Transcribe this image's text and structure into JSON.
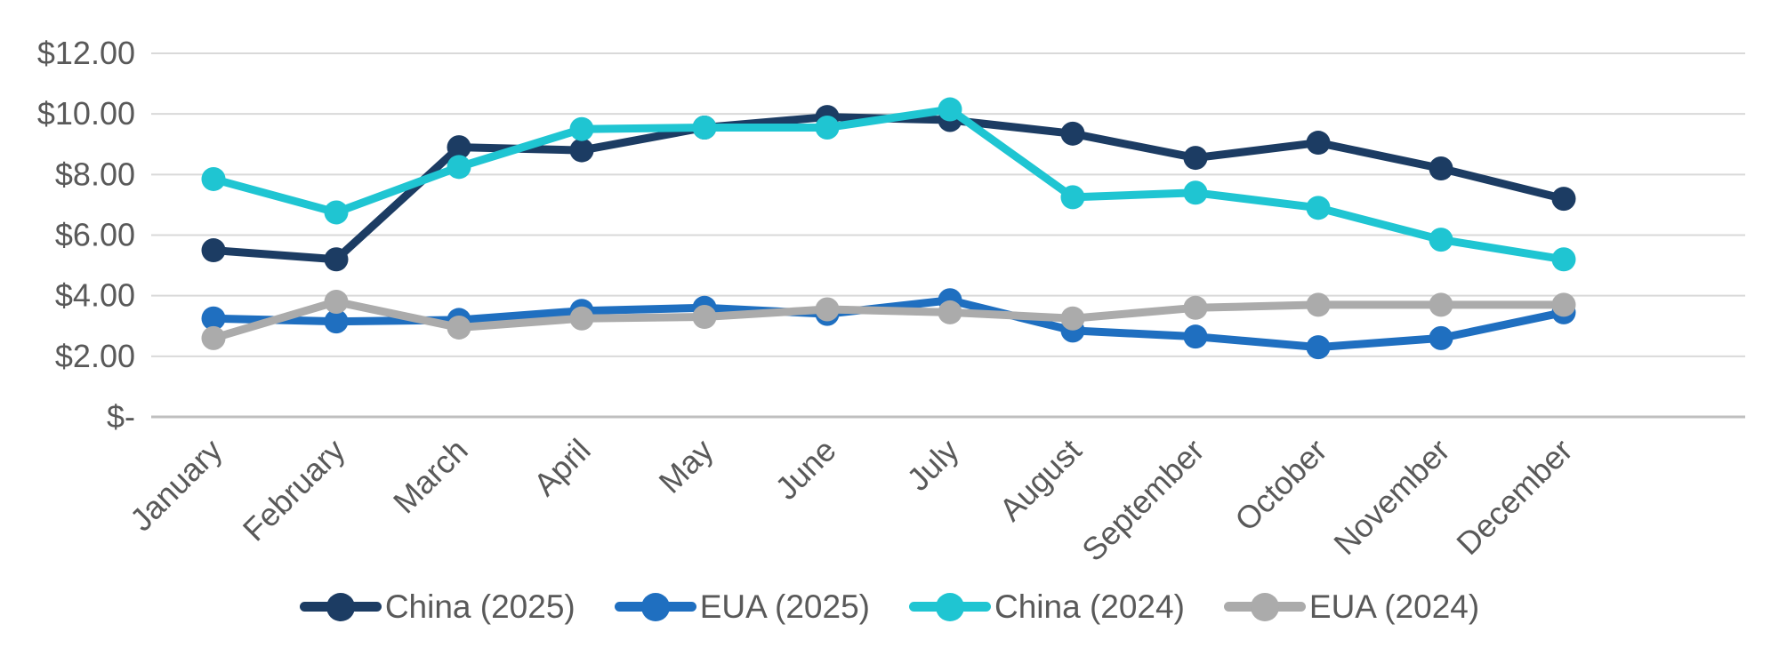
{
  "chart_data": {
    "type": "line",
    "title": "",
    "xlabel": "",
    "ylabel": "",
    "categories": [
      "January",
      "February",
      "March",
      "April",
      "May",
      "June",
      "July",
      "August",
      "September",
      "October",
      "November",
      "December"
    ],
    "series": [
      {
        "name": "China (2025)",
        "color": "#1C3C63",
        "values": [
          5.5,
          5.2,
          8.9,
          8.8,
          9.55,
          9.9,
          9.8,
          9.35,
          8.55,
          9.05,
          8.2,
          7.2
        ]
      },
      {
        "name": "EUA (2025)",
        "color": "#1F6FC0",
        "values": [
          3.25,
          3.15,
          3.2,
          3.5,
          3.6,
          3.4,
          3.85,
          2.85,
          2.65,
          2.3,
          2.6,
          3.45
        ]
      },
      {
        "name": "China (2024)",
        "color": "#1FC5D2",
        "values": [
          7.85,
          6.75,
          8.25,
          9.5,
          9.55,
          9.55,
          10.15,
          7.25,
          7.4,
          6.9,
          5.85,
          5.2
        ]
      },
      {
        "name": "EUA (2024)",
        "color": "#ABABAB",
        "values": [
          2.6,
          3.8,
          2.95,
          3.25,
          3.3,
          3.55,
          3.45,
          3.25,
          3.6,
          3.7,
          3.7,
          3.7
        ]
      }
    ],
    "y_ticks": [
      {
        "value": 12,
        "label": "$12.00"
      },
      {
        "value": 10,
        "label": "$10.00"
      },
      {
        "value": 8,
        "label": "$8.00"
      },
      {
        "value": 6,
        "label": "$6.00"
      },
      {
        "value": 4,
        "label": "$4.00"
      },
      {
        "value": 2,
        "label": "$2.00"
      },
      {
        "value": 0,
        "label": "$-"
      }
    ],
    "ylim": [
      0,
      12
    ],
    "grid": true,
    "legend_position": "bottom",
    "colors": {
      "gridline": "#D9D9D9",
      "axis_line": "#BFBFBF",
      "label_text": "#595959",
      "background": "#FFFFFF"
    }
  }
}
